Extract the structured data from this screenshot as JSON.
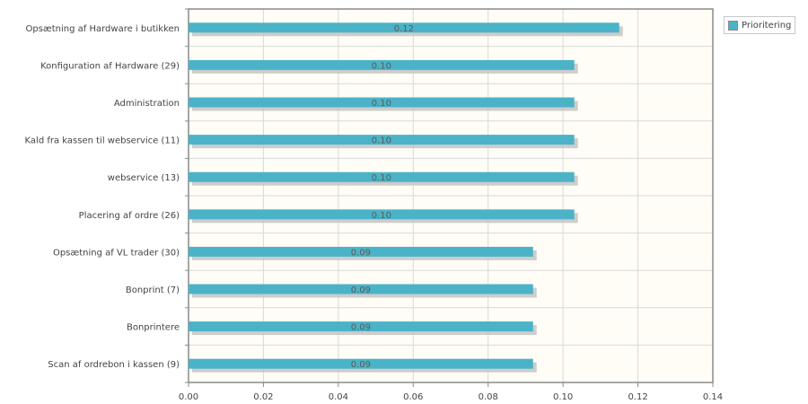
{
  "chart_data": {
    "type": "bar",
    "orientation": "horizontal",
    "categories": [
      "Opsætning af Hardware i butikken",
      "Konfiguration af Hardware (29)",
      "Administration",
      "Kald fra kassen til webservice (11)",
      "webservice (13)",
      "Placering af ordre (26)",
      "Opsætning af VL trader (30)",
      "Bonprint (7)",
      "Bonprintere",
      "Scan af ordrebon i kassen (9)"
    ],
    "series": [
      {
        "name": "Prioritering",
        "values": [
          0.115,
          0.103,
          0.103,
          0.103,
          0.103,
          0.103,
          0.092,
          0.092,
          0.092,
          0.092
        ],
        "data_labels": [
          "0.12",
          "0.10",
          "0.10",
          "0.10",
          "0.10",
          "0.10",
          "0.09",
          "0.09",
          "0.09",
          "0.09"
        ]
      }
    ],
    "x_ticks": [
      "0.00",
      "0.02",
      "0.04",
      "0.06",
      "0.08",
      "0.10",
      "0.12",
      "0.14"
    ],
    "xlim": [
      0,
      0.14
    ],
    "grid": true,
    "legend_position": "top-right",
    "colors": {
      "bar": "#4ab3c8",
      "bar_shadow": "#c4c4c4",
      "plot_background": "#fffdf6",
      "grid": "#d9d9d9",
      "axis": "#8a8a8a",
      "text": "#444444",
      "data_label": "#5a5a5a"
    }
  }
}
